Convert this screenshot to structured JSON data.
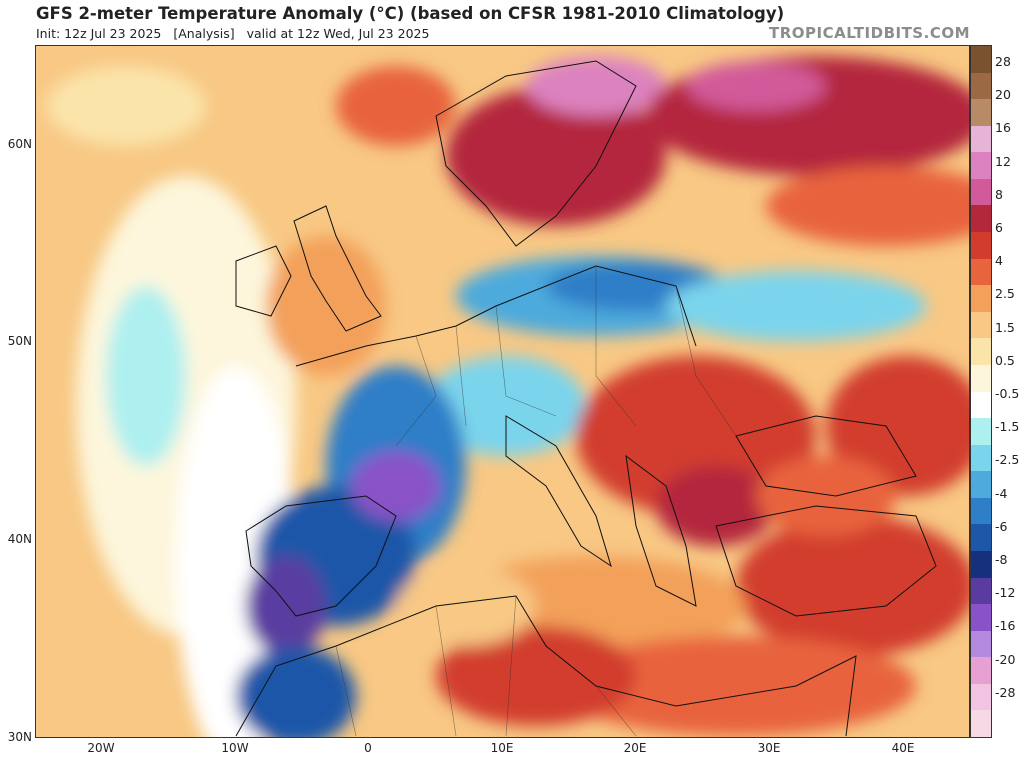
{
  "header": {
    "title": "GFS 2-meter Temperature Anomaly (°C) (based on CFSR 1981-2010 Climatology)",
    "init": "Init: 12z Jul 23 2025",
    "analysis": "[Analysis]",
    "valid": "valid at 12z Wed, Jul 23 2025",
    "brand": "TROPICALTIDBITS.COM"
  },
  "map": {
    "lat_labels": [
      "60N",
      "50N",
      "40N",
      "30N"
    ],
    "lon_labels": [
      "20W",
      "10W",
      "0",
      "10E",
      "20E",
      "30E",
      "40E"
    ]
  },
  "colorbar": {
    "labels": [
      "28",
      "20",
      "16",
      "12",
      "8",
      "6",
      "4",
      "2.5",
      "1.5",
      "0.5",
      "-0.5",
      "-1.5",
      "-2.5",
      "-4",
      "-6",
      "-8",
      "-12",
      "-16",
      "-20",
      "-28"
    ],
    "colors": [
      "#7a5230",
      "#9b6a44",
      "#b88a66",
      "#e6b4d6",
      "#dc82c0",
      "#d25a9a",
      "#b4283c",
      "#d23c2d",
      "#e8643c",
      "#f3a05a",
      "#f8c884",
      "#fbe4aa",
      "#fdf6dc",
      "#ffffff",
      "#aef0f0",
      "#7ad4ec",
      "#4eaadc",
      "#2e7ec8",
      "#1e56a8",
      "#16307e",
      "#5a3ca0",
      "#8a52c8",
      "#b48ae0",
      "#e6a0d2",
      "#f2c4e2",
      "#f6d9e4"
    ]
  }
}
